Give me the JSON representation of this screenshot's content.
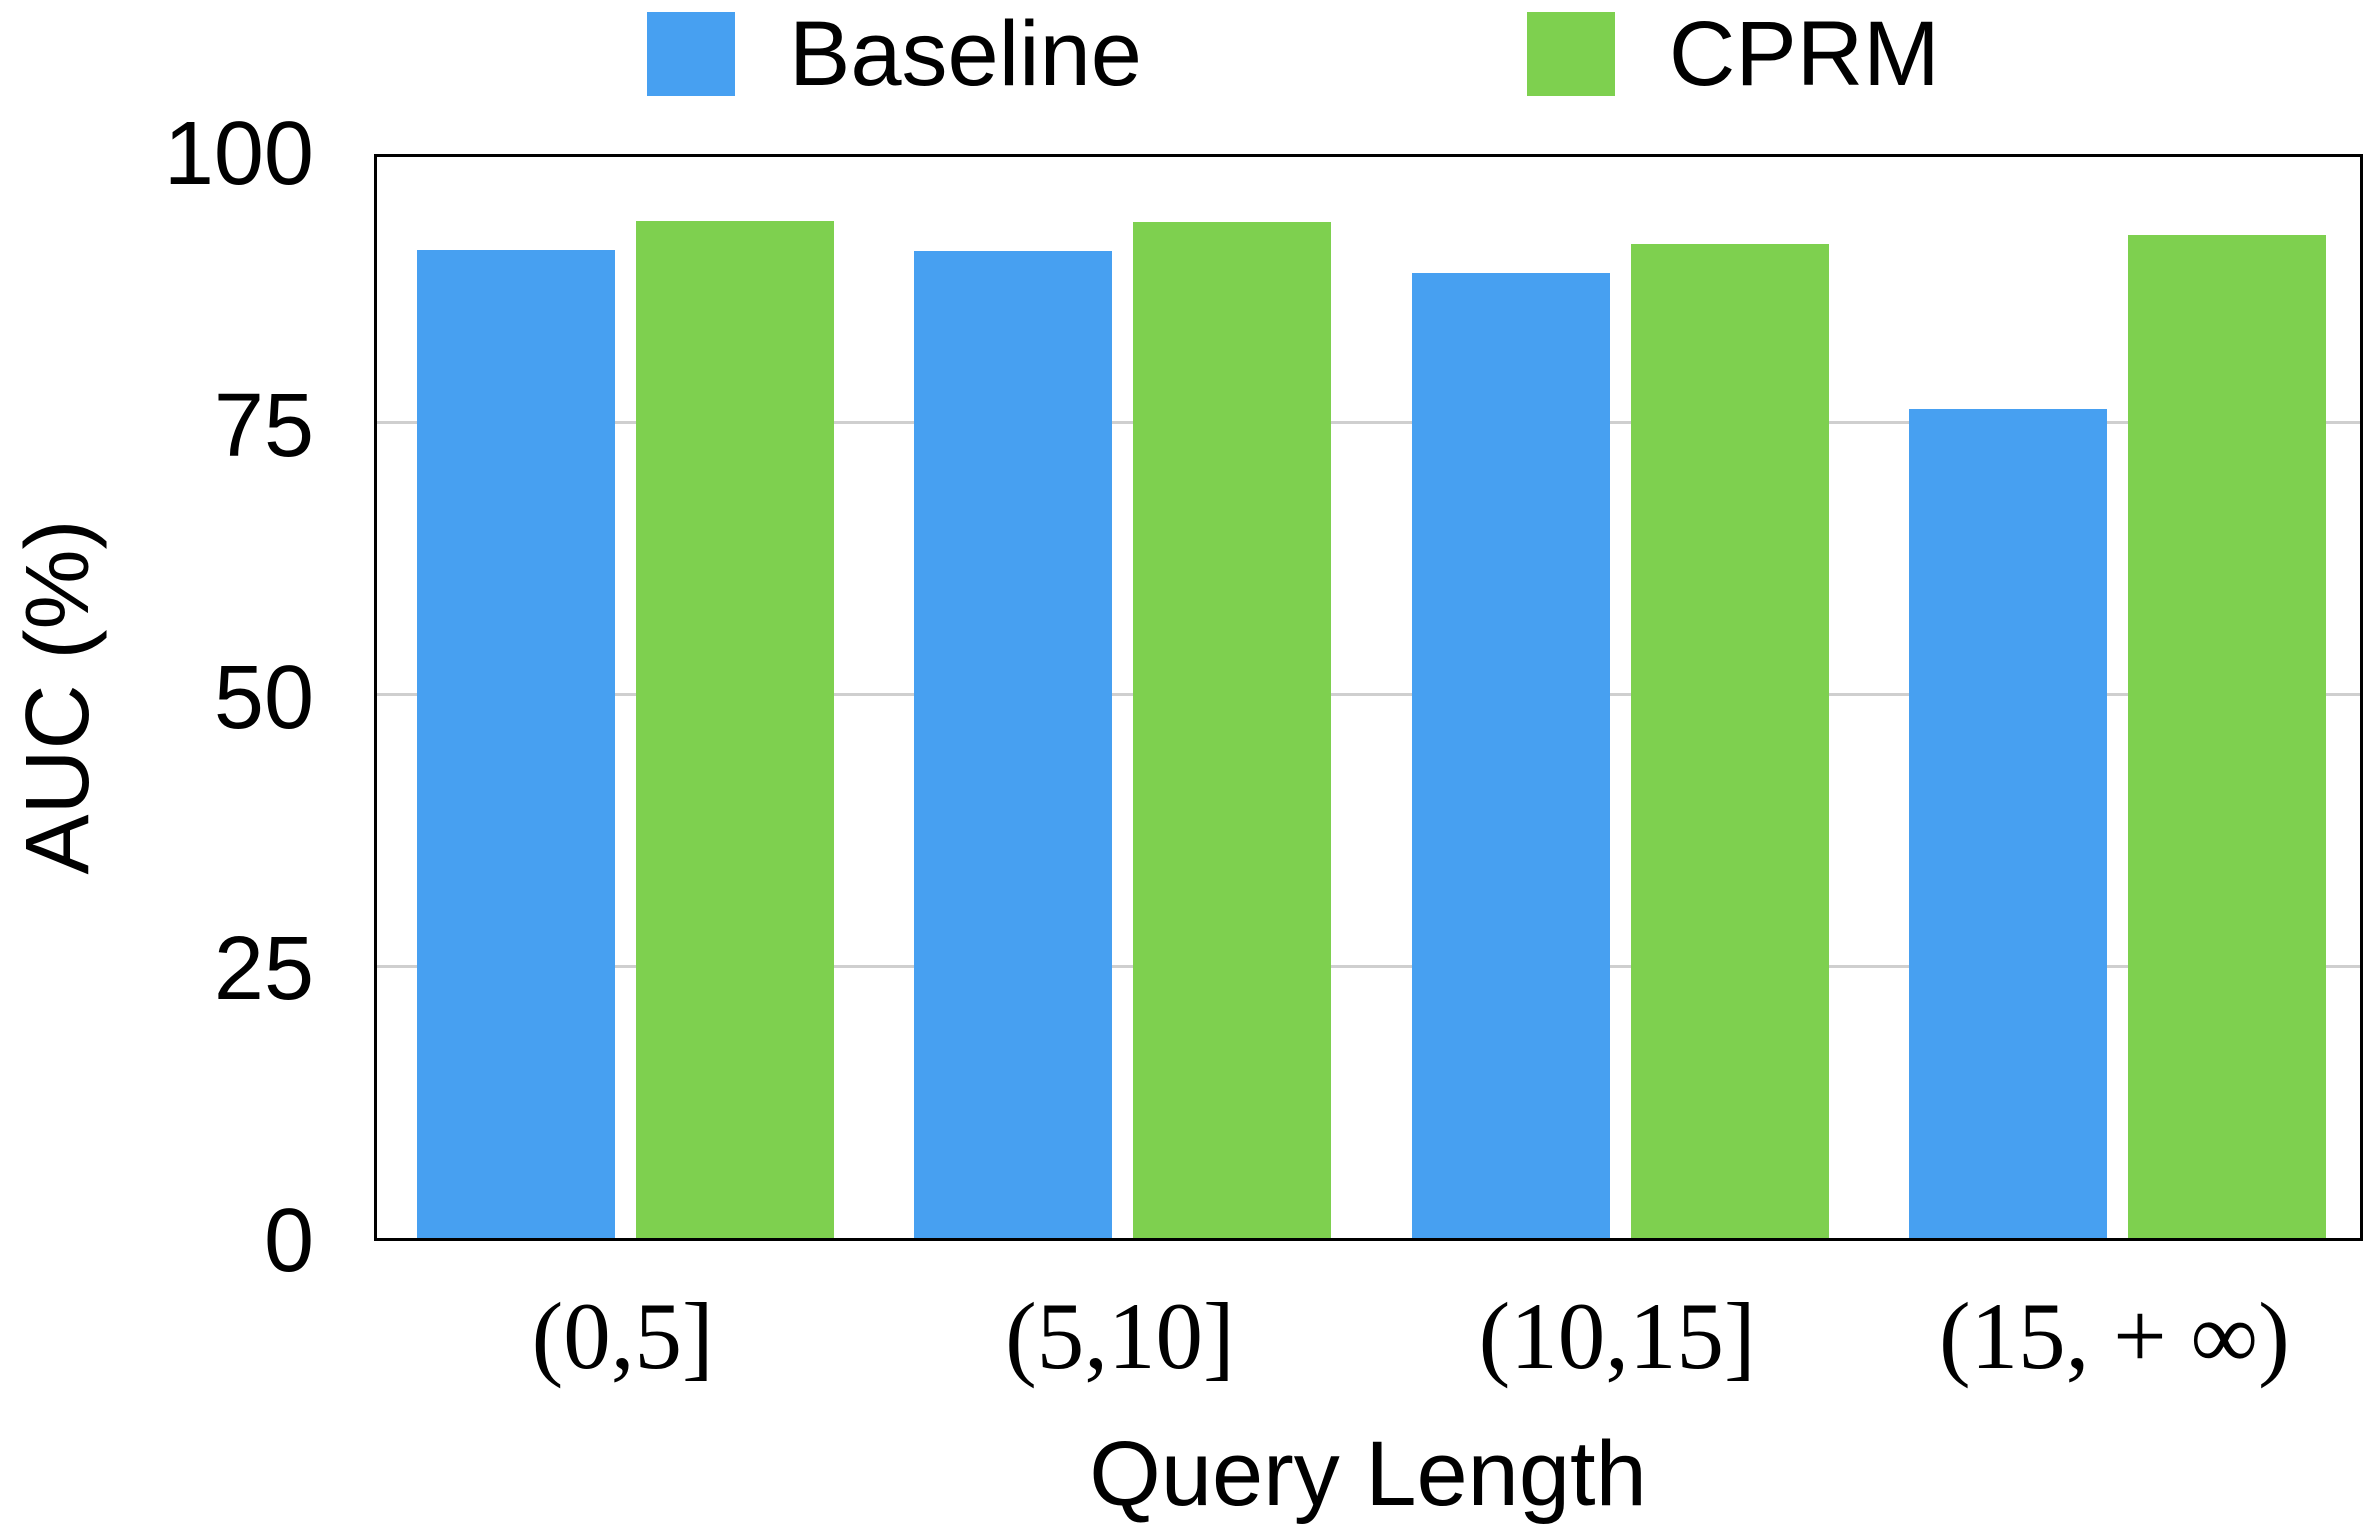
{
  "chart_data": {
    "type": "bar",
    "title": "",
    "categories": [
      "(0,5]",
      "(5,10]",
      "(10,15]",
      "(15, + ∞)"
    ],
    "series": [
      {
        "name": "Baseline",
        "color": "#47A0F1",
        "values": [
          90.9,
          90.8,
          88.8,
          76.3
        ]
      },
      {
        "name": "CPRM",
        "color": "#7ED04F",
        "values": [
          93.6,
          93.5,
          91.4,
          92.3
        ]
      }
    ],
    "xlabel": "Query Length",
    "ylabel": "AUC (%)",
    "ylim": [
      0,
      100
    ],
    "yticks": [
      0,
      25,
      50,
      75,
      100
    ],
    "grid": {
      "horizontal_ticks": [
        25,
        50,
        75
      ],
      "color": "#cfcfcf"
    },
    "legend_position": "top-center",
    "frame_color": "#000000",
    "background_color": "#ffffff"
  }
}
